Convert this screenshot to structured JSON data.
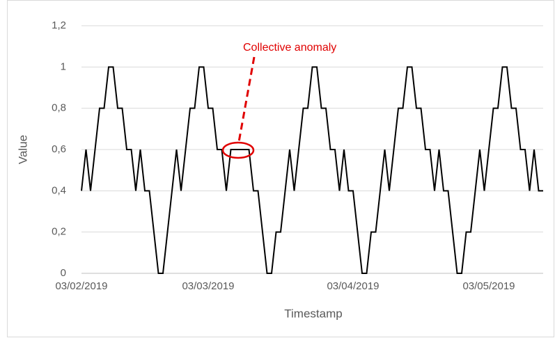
{
  "chart_data": {
    "type": "line",
    "x_label": "Timestamp",
    "y_label": "Value",
    "annotation": "Collective anomaly",
    "categories": [
      "03/02/2019",
      null,
      null,
      null,
      null,
      null,
      null,
      null,
      null,
      null,
      null,
      null,
      null,
      null,
      null,
      null,
      null,
      null,
      null,
      null,
      null,
      null,
      null,
      null,
      null,
      null,
      null,
      null,
      "03/03/2019",
      null,
      null,
      null,
      null,
      null,
      null,
      null,
      null,
      null,
      null,
      null,
      null,
      null,
      null,
      null,
      null,
      null,
      null,
      null,
      null,
      null,
      null,
      null,
      null,
      null,
      null,
      null,
      null,
      null,
      null,
      null,
      "03/04/2019",
      null,
      null,
      null,
      null,
      null,
      null,
      null,
      null,
      null,
      null,
      null,
      null,
      null,
      null,
      null,
      null,
      null,
      null,
      null,
      null,
      null,
      null,
      null,
      null,
      null,
      null,
      null,
      null,
      null,
      "03/05/2019",
      null,
      null,
      null,
      null,
      null,
      null,
      null,
      null,
      null,
      null,
      null,
      null
    ],
    "series": [
      {
        "name": "Value",
        "color": "#000000",
        "values": [
          0.4,
          0.6,
          0.4,
          0.6,
          0.8,
          0.8,
          1,
          1,
          0.8,
          0.8,
          0.6,
          0.6,
          0.4,
          0.6,
          0.4,
          0.4,
          0.2,
          0,
          0,
          0.2,
          0.4,
          0.6,
          0.4,
          0.6,
          0.8,
          0.8,
          1,
          1,
          0.8,
          0.8,
          0.6,
          0.6,
          0.4,
          0.6,
          0.6,
          0.6,
          0.6,
          0.6,
          0.4,
          0.4,
          0.2,
          0,
          0,
          0.2,
          0.2,
          0.4,
          0.6,
          0.4,
          0.6,
          0.8,
          0.8,
          1,
          1,
          0.8,
          0.8,
          0.6,
          0.6,
          0.4,
          0.6,
          0.4,
          0.4,
          0.2,
          0,
          0,
          0.2,
          0.2,
          0.4,
          0.6,
          0.4,
          0.6,
          0.8,
          0.8,
          1,
          1,
          0.8,
          0.8,
          0.6,
          0.6,
          0.4,
          0.6,
          0.4,
          0.4,
          0.2,
          0,
          0,
          0.2,
          0.2,
          0.4,
          0.6,
          0.4,
          0.6,
          0.8,
          0.8,
          1,
          1,
          0.8,
          0.8,
          0.6,
          0.6,
          0.4,
          0.6,
          0.4,
          0.4
        ]
      }
    ],
    "ylim": [
      0,
      1.2
    ],
    "yticks": [
      0,
      {
        "value": 0.2,
        "label": "0,2"
      },
      {
        "value": 0.4,
        "label": "0,4"
      },
      {
        "value": 0.6,
        "label": "0,6"
      },
      {
        "value": 0.8,
        "label": "0,8"
      },
      1,
      {
        "value": 1.2,
        "label": "1,2"
      }
    ],
    "grid": true,
    "legend": false
  }
}
